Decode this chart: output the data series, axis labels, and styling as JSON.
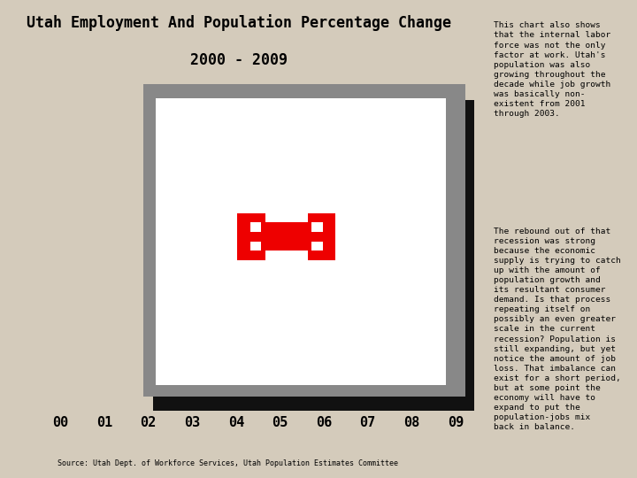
{
  "title_line1": "Utah Employment And Population Percentage Change",
  "title_line2": "2000 - 2009",
  "title_fontsize": 12,
  "title_fontweight": "bold",
  "bg_color": "#d4cbbb",
  "plot_bg": "#ffffff",
  "x_labels": [
    "00",
    "01",
    "02",
    "03",
    "04",
    "05",
    "06",
    "07",
    "08",
    "09"
  ],
  "source_text": "Source: Utah Dept. of Workforce Services, Utah Population Estimates Committee",
  "sidebar_text1": "This chart also shows\nthat the internal labor\nforce was not the only\nfactor at work. Utah's\npopulation was also\ngrowing throughout the\ndecade while job growth\nwas basically non-\nexistent from 2001\nthrough 2003.",
  "sidebar_text2": "The rebound out of that\nrecession was strong\nbecause the economic\nsupply is trying to catch\nup with the amount of\npopulation growth and\nits resultant consumer\ndemand. Is that process\nrepeating itself on\npossibly an even greater\nscale in the current\nrecession? Population is\nstill expanding, but yet\nnotice the amount of job\nloss. That imbalance can\nexist for a short period,\nbut at some point the\neconomy will have to\nexpand to put the\npopulation-jobs mix\nback in balance.",
  "sidebar_fontsize": 6.8,
  "frame_gray_color": "#888888",
  "frame_black_color": "#111111",
  "frame_light_color": "#cccccc",
  "broken_image_red": "#ee0000"
}
